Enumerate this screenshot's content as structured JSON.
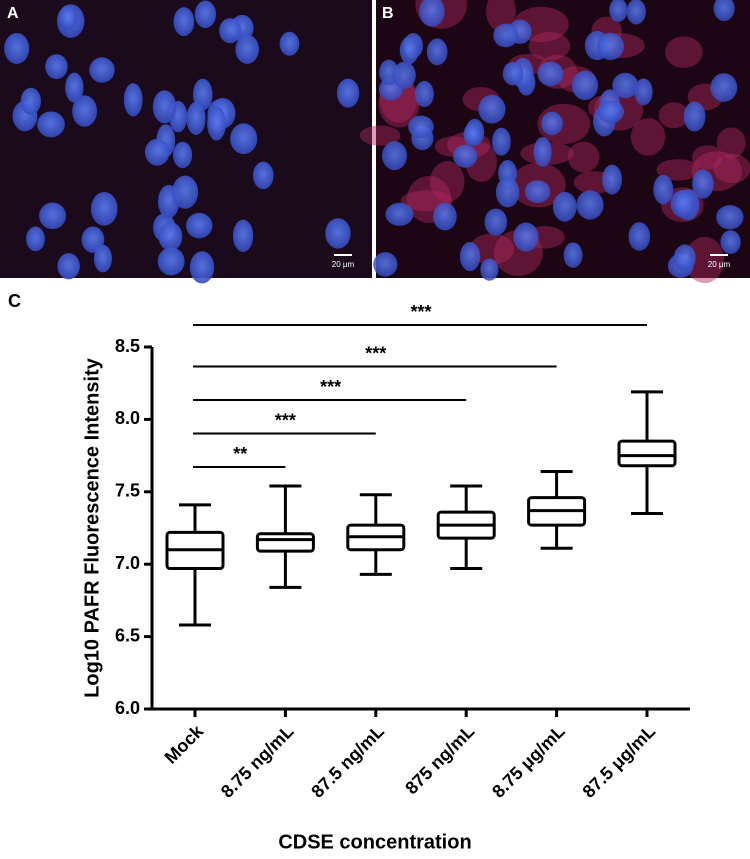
{
  "panels": {
    "a_label": "A",
    "b_label": "B",
    "c_label": "C",
    "a_scale": "20 μm",
    "b_scale": "20 μm"
  },
  "chart_data": {
    "type": "box",
    "y_label": "Log10 PAFR Fluorescence Intensity",
    "x_label": "CDSE concentration",
    "categories": [
      "Mock",
      "8.75 ng/mL",
      "87.5 ng/mL",
      "875 ng/mL",
      "8.75 μg/mL",
      "87.5 μg/mL"
    ],
    "boxes": [
      {
        "min": 6.58,
        "q1": 6.97,
        "median": 7.1,
        "q3": 7.22,
        "max": 7.41
      },
      {
        "min": 6.84,
        "q1": 7.09,
        "median": 7.17,
        "q3": 7.21,
        "max": 7.54
      },
      {
        "min": 6.93,
        "q1": 7.1,
        "median": 7.19,
        "q3": 7.27,
        "max": 7.48
      },
      {
        "min": 6.97,
        "q1": 7.18,
        "median": 7.27,
        "q3": 7.36,
        "max": 7.54
      },
      {
        "min": 7.11,
        "q1": 7.27,
        "median": 7.37,
        "q3": 7.46,
        "max": 7.64
      },
      {
        "min": 7.35,
        "q1": 7.68,
        "median": 7.75,
        "q3": 7.85,
        "max": 8.19
      }
    ],
    "significance": [
      "**",
      "***",
      "***",
      "***",
      "***"
    ],
    "ylim": [
      6.0,
      8.5
    ],
    "yticks": [
      {
        "value": 6.0,
        "label": "6.0"
      },
      {
        "value": 6.5,
        "label": "6.5"
      },
      {
        "value": 7.0,
        "label": "7.0"
      },
      {
        "value": 7.5,
        "label": "7.5"
      },
      {
        "value": 8.0,
        "label": "8.0"
      },
      {
        "value": 8.5,
        "label": "8.5"
      }
    ],
    "color": "#000000"
  }
}
